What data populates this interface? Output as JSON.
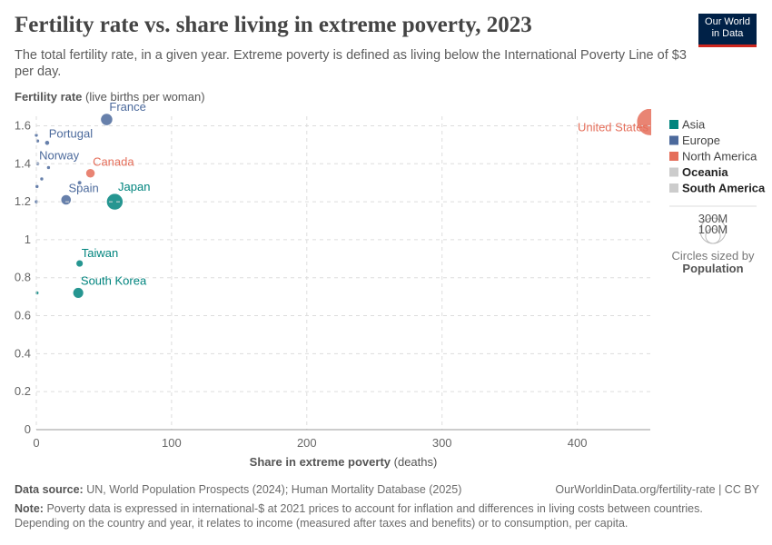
{
  "chart_data": {
    "type": "scatter",
    "title": "Fertility rate vs. share living in extreme poverty, 2023",
    "subtitle": "The total fertility rate, in a given year. Extreme poverty is defined as living below the International Poverty Line of $3 per day.",
    "logo": [
      "Our World",
      "in Data"
    ],
    "y_label": {
      "name": "Fertility rate",
      "unit": "(live births per woman)"
    },
    "x_label": {
      "name": "Share in extreme poverty",
      "unit": "(deaths)"
    },
    "xlim": [
      0,
      454
    ],
    "ylim": [
      0,
      1.65
    ],
    "xticks": [
      0,
      100,
      200,
      300,
      400
    ],
    "yticks": [
      0,
      0.2,
      0.4,
      0.6,
      0.8,
      1,
      1.2,
      1.4,
      1.6
    ],
    "grid": true,
    "series": [
      {
        "name": "Asia",
        "color": "#00847e",
        "x": [
          58,
          32,
          31,
          0.5
        ],
        "values": [
          1.2,
          0.875,
          0.72,
          0.72
        ],
        "sizes": [
          124000000,
          23000000,
          52000000,
          5000000
        ],
        "labels": [
          "Japan",
          "Taiwan",
          "South Korea",
          null
        ]
      },
      {
        "name": "Europe",
        "color": "#4c6a9c",
        "x": [
          52,
          8,
          0,
          1,
          1,
          9,
          4,
          0.5,
          0,
          32,
          22
        ],
        "values": [
          1.633,
          1.51,
          1.55,
          1.52,
          1.4,
          1.38,
          1.32,
          1.28,
          1.2,
          1.3,
          1.21
        ],
        "sizes": [
          66000000,
          10400000,
          500000,
          1000000,
          5500000,
          2800000,
          2100000,
          1300000,
          600000,
          8000000,
          48000000
        ],
        "labels": [
          "France",
          "Portugal",
          null,
          null,
          "Norway",
          null,
          null,
          null,
          null,
          null,
          "Spain"
        ]
      },
      {
        "name": "North America",
        "color": "#e56e5a",
        "x": [
          454,
          40
        ],
        "values": [
          1.62,
          1.35
        ],
        "sizes": [
          340000000,
          39000000
        ],
        "labels": [
          "United States",
          "Canada"
        ]
      },
      {
        "name": "Oceania",
        "color": "#cccccc",
        "x": [],
        "values": [],
        "sizes": [],
        "labels": []
      },
      {
        "name": "South America",
        "color": "#cccccc",
        "x": [],
        "values": [],
        "sizes": [],
        "labels": []
      }
    ],
    "size_legend": {
      "items": [
        {
          "value": 300000000,
          "label": "300M"
        },
        {
          "value": 100000000,
          "label": "100M"
        }
      ],
      "caption": "Circles sized by",
      "variable": "Population"
    },
    "source": {
      "label": "Data source:",
      "text": "UN, World Population Prospects (2024); Human Mortality Database (2025)"
    },
    "url": "OurWorldinData.org/fertility-rate | CC BY",
    "note": {
      "label": "Note:",
      "text": "Poverty data is expressed in international-$ at 2021 prices to account for inflation and differences in living costs between countries. Depending on the country and year, it relates to income (measured after taxes and benefits) or to consumption, per capita."
    }
  }
}
